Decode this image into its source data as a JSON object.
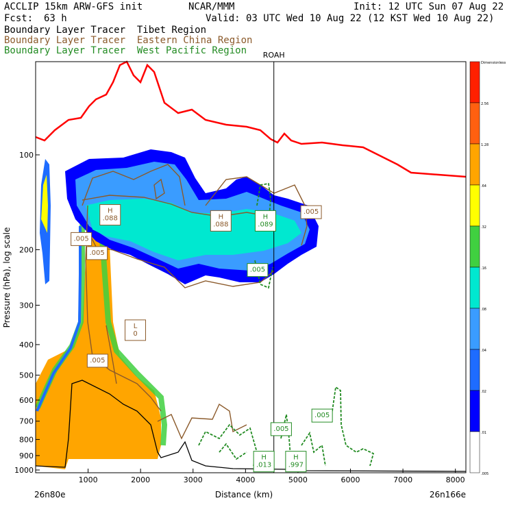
{
  "header": {
    "title_left": "ACCLIP 15km ARW-GFS init",
    "org": "NCAR/MMM",
    "init": "Init: 12 UTC Sun 07 Aug 22",
    "fcst_label": "Fcst:",
    "fcst_value": "63 h",
    "valid": "Valid: 03 UTC Wed 10 Aug 22 (12 KST Wed 10 Aug 22)",
    "legend_tibet": "Boundary Layer Tracer  Tibet Region",
    "legend_china": "Boundary Layer Tracer  Eastern China Region",
    "legend_wpac": "Boundary Layer Tracer  West Pacific Region"
  },
  "colors": {
    "tibet_shading": [
      "#0000ff",
      "#1e6cff",
      "#3a9cff",
      "#00e8d0",
      "#40d040",
      "#ffff00",
      "#ffa500",
      "#ff6010",
      "#ff2000"
    ],
    "china_contour": "#8b5a2b",
    "wpac_contour": "#228b22",
    "tropopause": "#ff0000"
  },
  "chart_data": {
    "type": "cross-section",
    "xlabel": "Distance (km)",
    "ylabel": "Pressure (hPa), log scale",
    "xlim": [
      0,
      8200
    ],
    "x_ticks": [
      "1000",
      "2000",
      "3000",
      "4000",
      "5000",
      "6000",
      "7000",
      "8000"
    ],
    "y_scale": "log",
    "y_ticks": [
      "100",
      "200",
      "300",
      "400",
      "500",
      "600",
      "700",
      "800",
      "900",
      "1000"
    ],
    "start_label": "26n80e",
    "end_label": "26n166e",
    "marker": {
      "label": "ROAH",
      "x": 4540
    },
    "colorbar": {
      "labels": [
        "Dimensionless",
        "2.56",
        "1.28",
        ".64",
        ".32",
        ".16",
        ".08",
        ".04",
        ".02",
        ".01",
        ".005"
      ]
    },
    "hl_labels": [
      {
        "text": [
          "H",
          ".088"
        ],
        "x": 1420,
        "p": 155,
        "series": "china"
      },
      {
        "text": [
          "H",
          ".088"
        ],
        "x": 3530,
        "p": 162,
        "series": "china"
      },
      {
        "text": [
          "H",
          ".089"
        ],
        "x": 4380,
        "p": 162,
        "series": "wpac"
      },
      {
        "text": [
          "L",
          "0"
        ],
        "x": 1900,
        "p": 360,
        "series": "china"
      },
      {
        "text": [
          "H",
          ".013"
        ],
        "x": 4350,
        "p": 940,
        "series": "wpac"
      },
      {
        "text": [
          "H",
          ".997"
        ],
        "x": 4960,
        "p": 940,
        "series": "wpac"
      },
      {
        "text": [
          ".005"
        ],
        "x": 870,
        "p": 185,
        "series": "china"
      },
      {
        "text": [
          ".005"
        ],
        "x": 1170,
        "p": 205,
        "series": "china"
      },
      {
        "text": [
          ".005"
        ],
        "x": 1180,
        "p": 450,
        "series": "china"
      },
      {
        "text": [
          ".005"
        ],
        "x": 5250,
        "p": 152,
        "series": "china"
      },
      {
        "text": [
          ".005"
        ],
        "x": 4680,
        "p": 742,
        "series": "wpac"
      },
      {
        "text": [
          ".005"
        ],
        "x": 5460,
        "p": 672,
        "series": "wpac"
      },
      {
        "text": [
          ".005"
        ],
        "x": 4230,
        "p": 232,
        "series": "wpac"
      }
    ]
  }
}
